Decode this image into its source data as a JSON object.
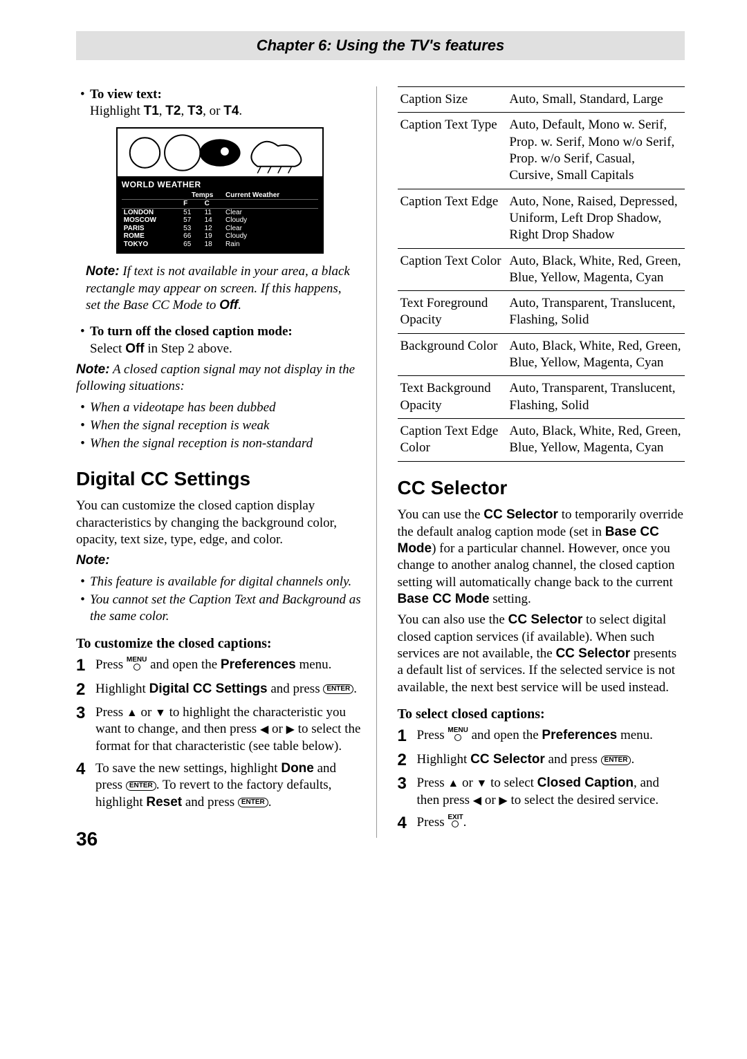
{
  "chapter_title": "Chapter 6: Using the TV's features",
  "page_number": "36",
  "left": {
    "view_text_head": "To view text:",
    "view_text_body_a": "Highlight ",
    "view_text_body_b": "T1",
    "view_text_body_c": ", ",
    "view_text_body_d": "T2",
    "view_text_body_e": ", ",
    "view_text_body_f": "T3",
    "view_text_body_g": ", or ",
    "view_text_body_h": "T4",
    "view_text_body_i": ".",
    "weather": {
      "title": "WORLD WEATHER",
      "col_temps": "Temps",
      "col_f": "F",
      "col_c": "C",
      "col_weather": "Current Weather",
      "rows": [
        {
          "city": "LONDON",
          "f": "51",
          "c": "11",
          "w": "Clear"
        },
        {
          "city": "MOSCOW",
          "f": "57",
          "c": "14",
          "w": "Cloudy"
        },
        {
          "city": "PARIS",
          "f": "53",
          "c": "12",
          "w": "Clear"
        },
        {
          "city": "ROME",
          "f": "66",
          "c": "19",
          "w": "Cloudy"
        },
        {
          "city": "TOKYO",
          "f": "65",
          "c": "18",
          "w": "Rain"
        }
      ]
    },
    "note1_label": "Note:",
    "note1_body_a": " If text is not available in your area, a black rectangle may appear on screen. If this happens, set the Base CC Mode to ",
    "note1_body_b": "Off",
    "note1_body_c": ".",
    "turnoff_head": "To turn off the closed caption mode:",
    "turnoff_body_a": "Select ",
    "turnoff_body_b": "Off",
    "turnoff_body_c": " in Step 2 above.",
    "note2_label": "Note:",
    "note2_body": "  A closed caption signal may not display in the following situations:",
    "note2_items": [
      "When a videotape has been dubbed",
      "When the signal reception is weak",
      "When the signal reception is non-standard"
    ],
    "sec1_title": "Digital CC Settings",
    "sec1_intro": "You can customize the closed caption display characteristics by changing the background color, opacity, text size, type, edge, and color.",
    "note3_label": "Note:",
    "note3_items": [
      "This feature is available for digital channels only.",
      "You cannot set the Caption Text and Background as the same color."
    ],
    "customize_head": "To customize the closed captions:",
    "steps1": {
      "s1_a": "Press ",
      "s1_menu": "MENU",
      "s1_b": " and open the ",
      "s1_c": "Preferences",
      "s1_d": " menu.",
      "s2_a": "Highlight ",
      "s2_b": "Digital CC Settings",
      "s2_c": " and press ",
      "s2_enter": "ENTER",
      "s2_d": ".",
      "s3_a": "Press ",
      "s3_b": " or ",
      "s3_c": " to highlight the characteristic you want to change, and then press ",
      "s3_d": " or ",
      "s3_e": " to select the format for that characteristic (see table below).",
      "s4_a": "To save the new settings, highlight ",
      "s4_b": "Done",
      "s4_c": " and press ",
      "s4_enter1": "ENTER",
      "s4_d": ". To revert to the factory defaults, highlight ",
      "s4_e": "Reset",
      "s4_f": " and press ",
      "s4_enter2": "ENTER",
      "s4_g": "."
    }
  },
  "right": {
    "table": [
      {
        "k": "Caption Size",
        "v": "Auto, Small, Standard, Large"
      },
      {
        "k": "Caption Text Type",
        "v": "Auto, Default, Mono w. Serif, Prop. w. Serif, Mono w/o Serif, Prop. w/o Serif, Casual, Cursive, Small Capitals"
      },
      {
        "k": "Caption Text Edge",
        "v": "Auto, None, Raised, Depressed, Uniform, Left Drop Shadow, Right Drop Shadow"
      },
      {
        "k": "Caption Text Color",
        "v": "Auto, Black, White, Red, Green, Blue, Yellow, Magenta, Cyan"
      },
      {
        "k": "Text Foreground Opacity",
        "v": "Auto, Transparent, Translucent, Flashing, Solid"
      },
      {
        "k": "Background Color",
        "v": "Auto, Black, White, Red, Green, Blue, Yellow, Magenta, Cyan"
      },
      {
        "k": "Text Background Opacity",
        "v": "Auto, Transparent, Translucent, Flashing, Solid"
      },
      {
        "k": "Caption Text Edge Color",
        "v": "Auto, Black, White, Red, Green, Blue, Yellow, Magenta, Cyan"
      }
    ],
    "sec2_title": "CC Selector",
    "p1_a": "You can use the ",
    "p1_b": "CC Selector",
    "p1_c": " to temporarily override the default analog caption mode (set in ",
    "p1_d": "Base CC Mode",
    "p1_e": ") for a particular channel. However, once you change to another analog channel, the closed caption setting will automatically change back to the current ",
    "p1_f": "Base CC Mode",
    "p1_g": " setting.",
    "p2_a": "You can also use the ",
    "p2_b": "CC Selector",
    "p2_c": " to select digital closed caption services (if available). When such services are not available, the ",
    "p2_d": "CC Selector",
    "p2_e": " presents a default list of services. If the selected service is not available, the next best service will be used instead.",
    "select_head": "To select closed captions:",
    "steps2": {
      "s1_a": "Press ",
      "s1_menu": "MENU",
      "s1_b": " and open the ",
      "s1_c": "Preferences",
      "s1_d": " menu.",
      "s2_a": "Highlight ",
      "s2_b": "CC Selector",
      "s2_c": " and press ",
      "s2_enter": "ENTER",
      "s2_d": ".",
      "s3_a": "Press ",
      "s3_b": " or ",
      "s3_c": " to select ",
      "s3_d": "Closed Caption",
      "s3_e": ", and then press ",
      "s3_f": " or ",
      "s3_g": " to select the desired service.",
      "s4_a": "Press ",
      "s4_exit": "EXIT",
      "s4_b": "."
    }
  }
}
